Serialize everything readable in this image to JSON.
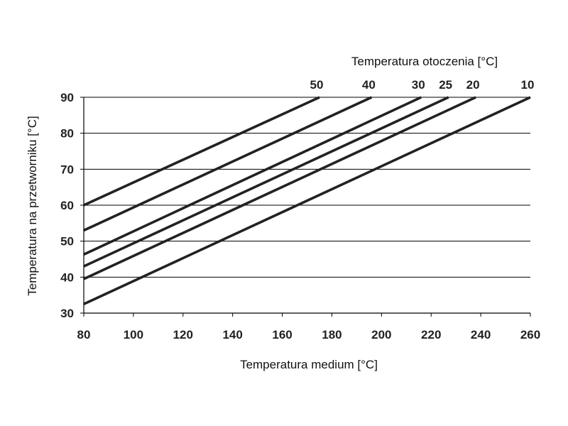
{
  "chart_data": {
    "type": "line",
    "title": "",
    "legend_title": "Temperatura otoczenia [°C]",
    "xlabel": "Temperatura medium [°C]",
    "ylabel": "Temperatura na przetworniku [°C]",
    "xlim": [
      80,
      260
    ],
    "ylim": [
      30,
      90
    ],
    "xticks": [
      "80",
      "100",
      "120",
      "140",
      "160",
      "180",
      "200",
      "220",
      "240",
      "260"
    ],
    "yticks": [
      "30",
      "40",
      "50",
      "60",
      "70",
      "80",
      "90"
    ],
    "grid": "horizontal",
    "color": "#222222",
    "series": [
      {
        "name": "50",
        "x": [
          80,
          175
        ],
        "y": [
          60,
          90
        ]
      },
      {
        "name": "40",
        "x": [
          80,
          196
        ],
        "y": [
          53,
          90
        ]
      },
      {
        "name": "30",
        "x": [
          80,
          216
        ],
        "y": [
          46.3,
          90
        ]
      },
      {
        "name": "25",
        "x": [
          80,
          227
        ],
        "y": [
          43,
          90
        ]
      },
      {
        "name": "20",
        "x": [
          80,
          238
        ],
        "y": [
          39.5,
          90
        ]
      },
      {
        "name": "10",
        "x": [
          80,
          260
        ],
        "y": [
          32.5,
          90
        ]
      }
    ]
  }
}
